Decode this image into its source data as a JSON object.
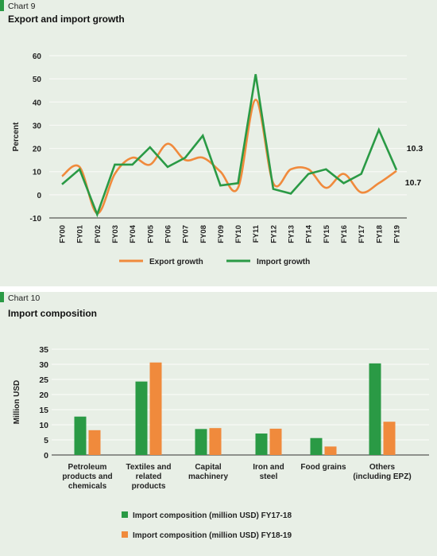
{
  "colors": {
    "export": "#f08a3c",
    "import": "#2a9a45",
    "panel": "#e8efe6",
    "grid": "#f7f9f5",
    "axis": "#333333"
  },
  "chart9": {
    "number": "Chart 9",
    "title": "Export and import growth"
  },
  "chart10": {
    "number": "Chart 10",
    "title": "Import composition"
  },
  "chart_data": [
    {
      "type": "line",
      "title": "Export and import growth",
      "xlabel": "",
      "ylabel": "Percent",
      "ylim": [
        -10,
        60
      ],
      "yticks": [
        "-10",
        "0",
        "10",
        "20",
        "30",
        "40",
        "50",
        "60"
      ],
      "categories": [
        "FY00",
        "FY01",
        "FY02",
        "FY03",
        "FY04",
        "FY05",
        "FY06",
        "FY07",
        "FY08",
        "FY09",
        "FY10",
        "FY11",
        "FY12",
        "FY13",
        "FY14",
        "FY15",
        "FY16",
        "FY17",
        "FY18",
        "FY19"
      ],
      "series": [
        {
          "name": "Export growth",
          "values": [
            8,
            12,
            -8,
            9,
            16,
            13,
            22,
            15,
            16,
            10,
            3,
            41,
            5,
            11,
            11,
            3,
            9,
            1,
            5,
            10.3
          ]
        },
        {
          "name": "Import growth",
          "values": [
            4.5,
            11,
            -8.5,
            13,
            13,
            20.5,
            12,
            16,
            25.5,
            4,
            5,
            52,
            2.5,
            0.5,
            9,
            11,
            5,
            9,
            28,
            10.7
          ]
        }
      ],
      "annotations": [
        "10.3",
        "10.7"
      ],
      "legend_position": "bottom",
      "grid": true
    },
    {
      "type": "bar",
      "title": "Import composition",
      "xlabel": "",
      "ylabel": "Million USD",
      "ylim": [
        0,
        35
      ],
      "yticks": [
        "0",
        "5",
        "10",
        "15",
        "20",
        "25",
        "30",
        "35"
      ],
      "categories": [
        [
          "Petroleum",
          "products and",
          "chemicals"
        ],
        [
          "Textiles and",
          "related",
          "products"
        ],
        [
          "Capital",
          "machinery"
        ],
        [
          "Iron and",
          "steel"
        ],
        [
          "Food grains"
        ],
        [
          "Others",
          "(including EPZ)"
        ]
      ],
      "series": [
        {
          "name": "Import composition (million USD) FY17-18",
          "values": [
            12.7,
            24.3,
            8.6,
            7.1,
            5.6,
            30.3
          ]
        },
        {
          "name": "Import composition (million USD) FY18-19",
          "values": [
            8.2,
            30.6,
            8.9,
            8.7,
            2.8,
            11.0
          ]
        }
      ],
      "legend_position": "bottom",
      "grid": true
    }
  ]
}
